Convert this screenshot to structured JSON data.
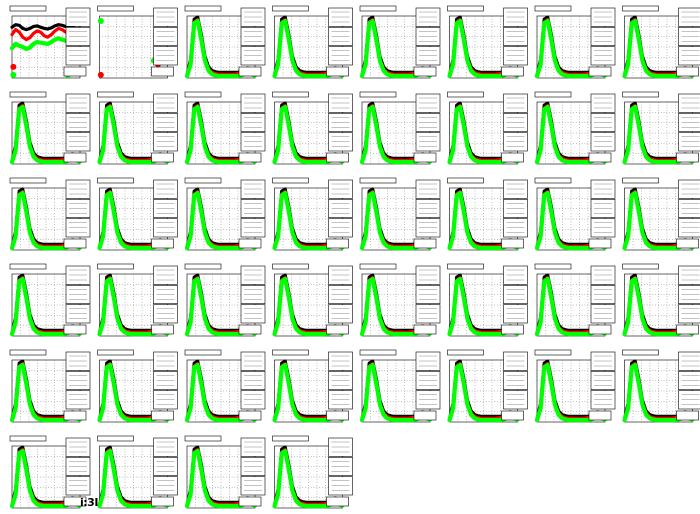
{
  "colors": {
    "background": "#ffffff",
    "frame": "#000000",
    "grid": "#000000",
    "series_black": "#000000",
    "series_red": "#ff0000",
    "series_green": "#00ff00"
  },
  "corner_text": "i:3I",
  "chart_data": {
    "type": "line",
    "layout": "small-multiples",
    "panel_count": 44,
    "grid_columns": 8,
    "xlabel": "",
    "ylabel": "",
    "x": [
      0,
      1,
      2,
      3,
      4,
      5,
      6,
      7,
      8,
      9,
      10,
      11,
      12,
      13,
      14,
      15,
      16,
      17,
      18,
      19
    ],
    "ylim": [
      0,
      1
    ],
    "grid": true,
    "legend": "top-right",
    "panels": [
      {
        "id": 1,
        "profile": "flat",
        "series": [
          {
            "color": "#000000",
            "values": [
              0.82,
              0.86,
              0.85,
              0.8,
              0.78,
              0.8,
              0.83,
              0.84,
              0.82,
              0.8,
              0.79,
              0.81,
              0.84,
              0.86,
              0.85,
              0.83,
              0.82,
              0.84,
              0.86,
              0.85
            ]
          },
          {
            "color": "#ff0000",
            "values": [
              0.7,
              0.78,
              0.74,
              0.66,
              0.62,
              0.65,
              0.72,
              0.76,
              0.74,
              0.68,
              0.66,
              0.7,
              0.76,
              0.8,
              0.78,
              0.74,
              0.72,
              0.76,
              0.8,
              0.78
            ]
          },
          {
            "color": "#00ff00",
            "values": [
              0.48,
              0.55,
              0.52,
              0.5,
              0.47,
              0.49,
              0.55,
              0.58,
              0.57,
              0.56,
              0.55,
              0.58,
              0.62,
              0.64,
              0.62,
              0.6,
              0.58,
              0.6,
              0.62,
              0.6
            ]
          }
        ]
      },
      {
        "id": 2,
        "profile": "empty",
        "series": []
      },
      {
        "id": 3,
        "profile": "peak"
      },
      {
        "id": 4,
        "profile": "peak"
      },
      {
        "id": 5,
        "profile": "peak"
      },
      {
        "id": 6,
        "profile": "peak"
      },
      {
        "id": 7,
        "profile": "peak"
      },
      {
        "id": 8,
        "profile": "peak"
      },
      {
        "id": 9,
        "profile": "peak"
      },
      {
        "id": 10,
        "profile": "peak"
      },
      {
        "id": 11,
        "profile": "peak"
      },
      {
        "id": 12,
        "profile": "peak"
      },
      {
        "id": 13,
        "profile": "peak"
      },
      {
        "id": 14,
        "profile": "peak"
      },
      {
        "id": 15,
        "profile": "peak"
      },
      {
        "id": 16,
        "profile": "peak"
      },
      {
        "id": 17,
        "profile": "peak"
      },
      {
        "id": 18,
        "profile": "peak"
      },
      {
        "id": 19,
        "profile": "peak"
      },
      {
        "id": 20,
        "profile": "peak"
      },
      {
        "id": 21,
        "profile": "peak"
      },
      {
        "id": 22,
        "profile": "peak"
      },
      {
        "id": 23,
        "profile": "peak"
      },
      {
        "id": 24,
        "profile": "peak"
      },
      {
        "id": 25,
        "profile": "peak"
      },
      {
        "id": 26,
        "profile": "peak"
      },
      {
        "id": 27,
        "profile": "peak"
      },
      {
        "id": 28,
        "profile": "peak"
      },
      {
        "id": 29,
        "profile": "peak"
      },
      {
        "id": 30,
        "profile": "peak"
      },
      {
        "id": 31,
        "profile": "peak"
      },
      {
        "id": 32,
        "profile": "peak"
      },
      {
        "id": 33,
        "profile": "peak"
      },
      {
        "id": 34,
        "profile": "peak"
      },
      {
        "id": 35,
        "profile": "peak"
      },
      {
        "id": 36,
        "profile": "peak"
      },
      {
        "id": 37,
        "profile": "peak"
      },
      {
        "id": 38,
        "profile": "peak"
      },
      {
        "id": 39,
        "profile": "peak"
      },
      {
        "id": 40,
        "profile": "peak"
      },
      {
        "id": 41,
        "profile": "peak"
      },
      {
        "id": 42,
        "profile": "peak"
      },
      {
        "id": 43,
        "profile": "peak"
      },
      {
        "id": 44,
        "profile": "peak"
      }
    ],
    "peak_series": [
      {
        "color": "#000000",
        "values": [
          0.05,
          0.3,
          0.95,
          0.98,
          0.7,
          0.35,
          0.18,
          0.12,
          0.1,
          0.09,
          0.09,
          0.09,
          0.09,
          0.09,
          0.09,
          0.1,
          0.12,
          0.14,
          0.12,
          0.1
        ]
      },
      {
        "color": "#ff0000",
        "values": [
          0.04,
          0.25,
          0.9,
          0.94,
          0.65,
          0.3,
          0.15,
          0.09,
          0.07,
          0.06,
          0.06,
          0.06,
          0.06,
          0.06,
          0.07,
          0.08,
          0.1,
          0.12,
          0.1,
          0.08
        ]
      },
      {
        "color": "#00ff00",
        "values": [
          0.03,
          0.22,
          0.88,
          0.92,
          0.62,
          0.28,
          0.12,
          0.06,
          0.04,
          0.03,
          0.03,
          0.03,
          0.03,
          0.03,
          0.03,
          0.04,
          0.06,
          0.08,
          0.06,
          0.04
        ]
      }
    ]
  }
}
